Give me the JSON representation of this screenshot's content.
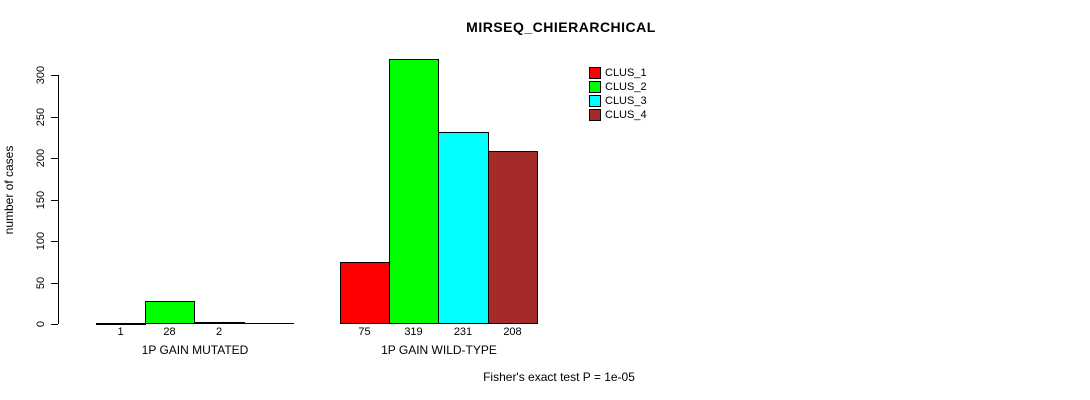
{
  "title": "MIRSEQ_CHIERARCHICAL",
  "footnote": "Fisher's exact test P = 1e-05",
  "chart_data": {
    "type": "bar",
    "title": "MIRSEQ_CHIERARCHICAL",
    "xlabel": "",
    "ylabel": "number of cases",
    "ylim": [
      0,
      300
    ],
    "yticks": [
      0,
      50,
      100,
      150,
      200,
      250,
      300
    ],
    "grid": false,
    "categories": [
      "1P GAIN MUTATED",
      "1P GAIN WILD-TYPE"
    ],
    "series": [
      {
        "name": "CLUS_1",
        "color": "#ff0000",
        "values": [
          1,
          75
        ]
      },
      {
        "name": "CLUS_2",
        "color": "#00ff00",
        "values": [
          28,
          319
        ]
      },
      {
        "name": "CLUS_3",
        "color": "#00ffff",
        "values": [
          2,
          231
        ]
      },
      {
        "name": "CLUS_4",
        "color": "#a52a2a",
        "values": [
          0,
          208
        ]
      }
    ],
    "legend_position": "top-right",
    "value_labels_shown": true,
    "zero_value_labels_hidden": true,
    "annotation": "Fisher's exact test P = 1e-05"
  }
}
